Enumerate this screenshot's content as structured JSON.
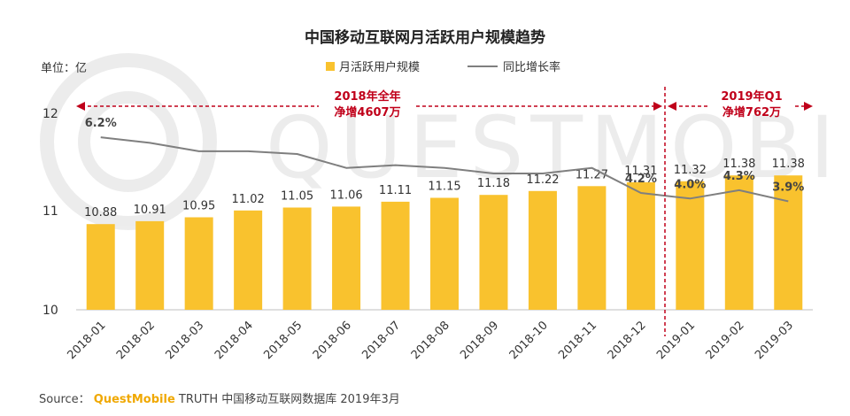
{
  "chart_data": {
    "type": "bar+line",
    "title": "中国移动互联网月活跃用户规模趋势",
    "unit_label": "单位：亿",
    "categories": [
      "2018-01",
      "2018-02",
      "2018-03",
      "2018-04",
      "2018-05",
      "2018-06",
      "2018-07",
      "2018-08",
      "2018-09",
      "2018-10",
      "2018-11",
      "2018-12",
      "2019-01",
      "2019-02",
      "2019-03"
    ],
    "series": [
      {
        "name": "月活跃用户规模",
        "type": "bar",
        "color": "#f9c22e",
        "values": [
          10.88,
          10.91,
          10.95,
          11.02,
          11.05,
          11.06,
          11.11,
          11.15,
          11.18,
          11.22,
          11.27,
          11.31,
          11.32,
          11.38,
          11.38
        ],
        "labels": [
          "10.88",
          "10.91",
          "10.95",
          "11.02",
          "11.05",
          "11.06",
          "11.11",
          "11.15",
          "11.18",
          "11.22",
          "11.27",
          "11.31",
          "11.32",
          "11.38",
          "11.38"
        ]
      },
      {
        "name": "同比增长率",
        "type": "line",
        "color": "#7f7f7f",
        "values": [
          6.2,
          6.0,
          5.7,
          5.7,
          5.6,
          5.1,
          5.2,
          5.1,
          4.9,
          4.9,
          5.1,
          4.2,
          4.0,
          4.3,
          3.9
        ],
        "labels": [
          {
            "index": 0,
            "text": "6.2%"
          },
          {
            "index": 11,
            "text": "4.2%"
          },
          {
            "index": 12,
            "text": "4.0%"
          },
          {
            "index": 13,
            "text": "4.3%"
          },
          {
            "index": 14,
            "text": "3.9%"
          }
        ]
      }
    ],
    "y_axis": {
      "min": 10,
      "max": 12,
      "ticks": [
        "10",
        "11",
        "12"
      ]
    },
    "y2_range": [
      0,
      7
    ],
    "annotations": [
      {
        "text": [
          "2018年全年",
          "净增4607万"
        ],
        "span": [
          "2018-01",
          "2018-12"
        ]
      },
      {
        "text": [
          "2019年Q1",
          "净增762万"
        ],
        "span": [
          "2019-01",
          "2019-03"
        ]
      }
    ],
    "divider_after": "2018-12",
    "watermark": "QUESTMOBILE"
  },
  "source": {
    "prefix": "Source：",
    "brand": "QuestMobile",
    "text": "TRUTH 中国移动互联网数据库 2019年3月"
  }
}
